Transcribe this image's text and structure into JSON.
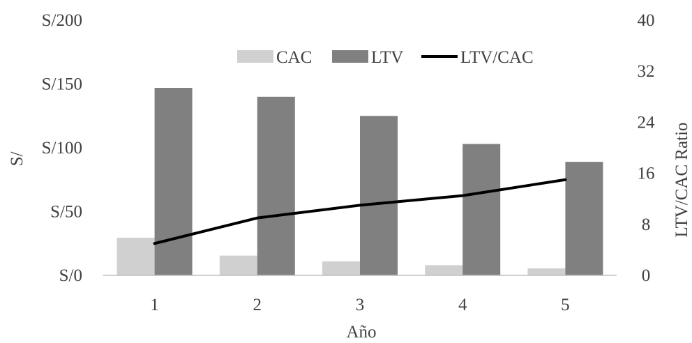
{
  "chart_data": {
    "type": "bar",
    "categories": [
      "1",
      "2",
      "3",
      "4",
      "5"
    ],
    "series": [
      {
        "name": "CAC",
        "kind": "bar",
        "axis": "left",
        "color": "#d0d0d0",
        "values": [
          29.5,
          15.5,
          11,
          8,
          5.5
        ]
      },
      {
        "name": "LTV",
        "kind": "bar",
        "axis": "left",
        "color": "#808080",
        "values": [
          147,
          140,
          125,
          103,
          89
        ]
      },
      {
        "name": "LTV/CAC",
        "kind": "line",
        "axis": "right",
        "color": "#000000",
        "values": [
          5,
          9,
          11,
          12.5,
          15
        ]
      }
    ],
    "xlabel": "Año",
    "ylabel": "S/",
    "y2label": "LTV/CAC Ratio",
    "ylim": [
      0,
      200
    ],
    "y2lim": [
      0,
      40
    ],
    "yticks": [
      "S/0",
      "S/50",
      "S/100",
      "S/150",
      "S/200"
    ],
    "y2ticks": [
      "0",
      "8",
      "16",
      "24",
      "32",
      "40"
    ],
    "legend_position": "top-right",
    "grid": false
  }
}
